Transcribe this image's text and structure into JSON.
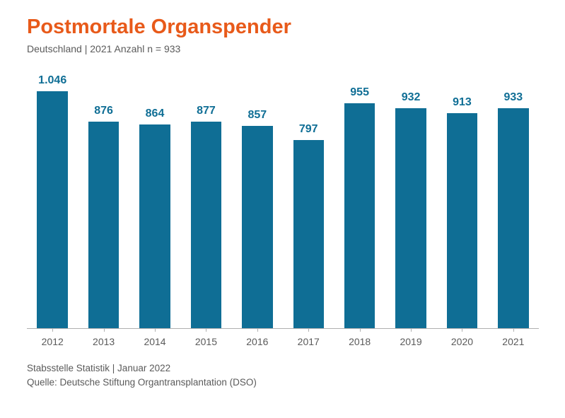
{
  "title": "Postmortale Organspender",
  "title_color": "#e85a1a",
  "subtitle": "Deutschland | 2021 Anzahl n = 933",
  "text_color": "#5a5a5a",
  "chart": {
    "type": "bar",
    "categories": [
      "2012",
      "2013",
      "2014",
      "2015",
      "2016",
      "2017",
      "2018",
      "2019",
      "2020",
      "2021"
    ],
    "values": [
      1046,
      876,
      864,
      877,
      857,
      797,
      955,
      932,
      913,
      933
    ],
    "display_values": [
      "1.046",
      "876",
      "864",
      "877",
      "857",
      "797",
      "955",
      "932",
      "913",
      "933"
    ],
    "bar_color": "#0f6e95",
    "value_label_color": "#0f6e95",
    "x_label_color": "#5a5a5a",
    "axis_color": "#b0b0b0",
    "background_color": "#ffffff",
    "y_max": 1080,
    "bar_width_ratio": 0.6,
    "value_fontsize": 16,
    "x_label_fontsize": 14
  },
  "footer_line1": "Stabsstelle Statistik | Januar 2022",
  "footer_line2": "Quelle: Deutsche Stiftung Organtransplantation (DSO)"
}
